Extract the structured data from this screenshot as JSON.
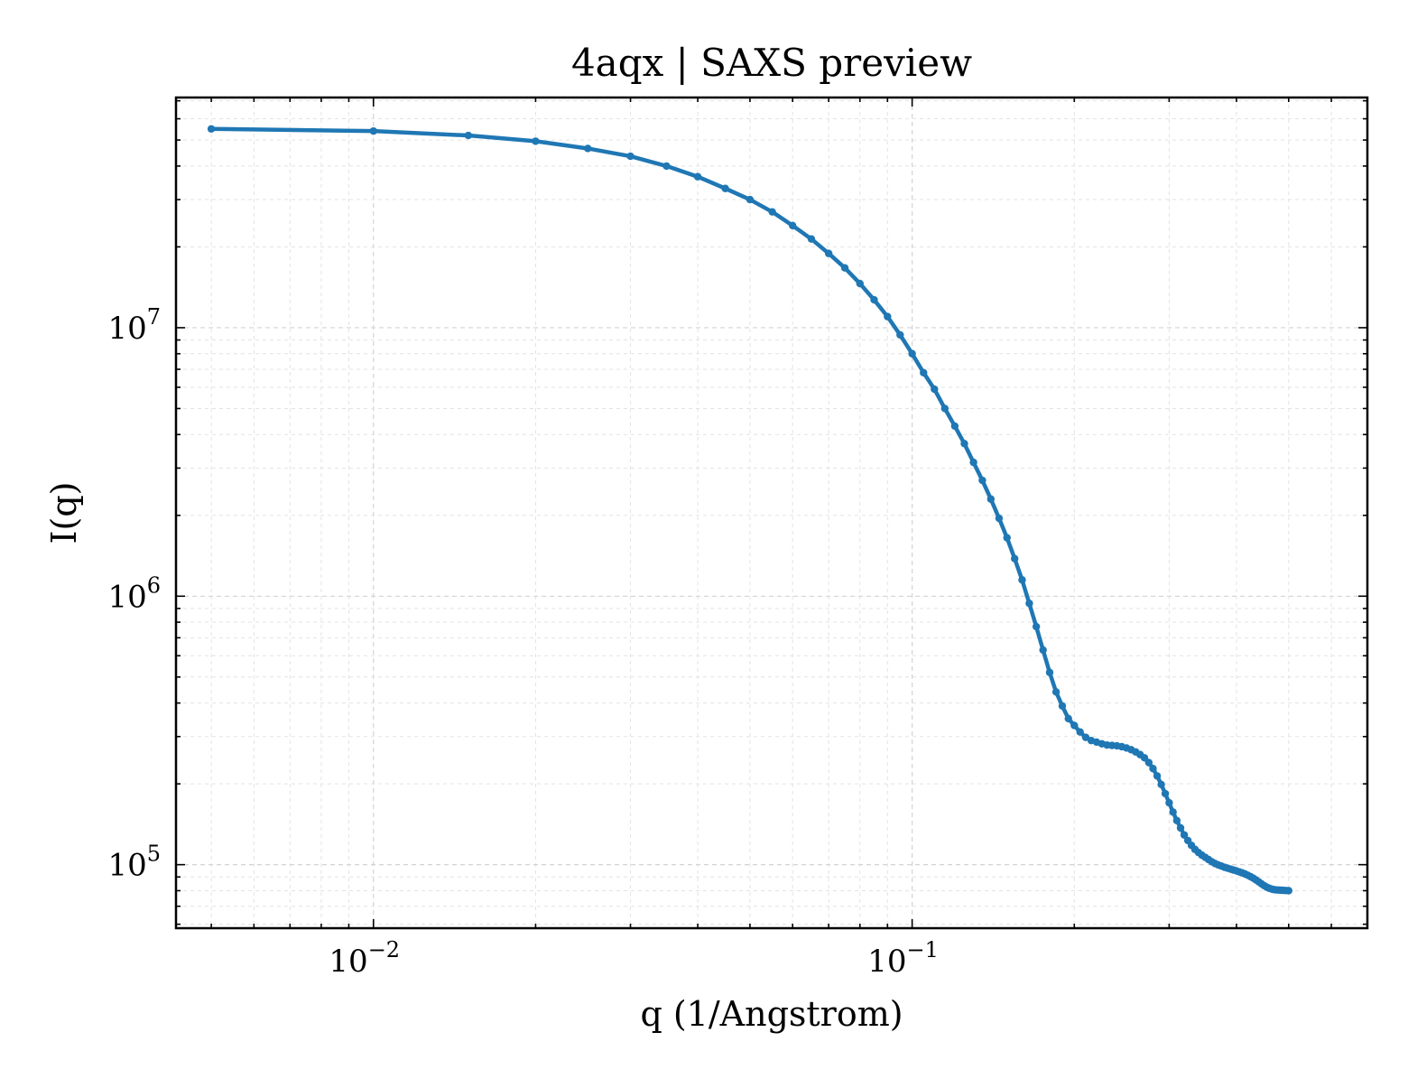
{
  "chart_data": {
    "type": "line",
    "title": "4aqx | SAXS preview",
    "xlabel": "q (1/Angstrom)",
    "ylabel": "I(q)",
    "xscale": "log",
    "yscale": "log",
    "xlim": [
      0.0043,
      0.7
    ],
    "ylim": [
      58000,
      72000000
    ],
    "grid": true,
    "legend": "none",
    "x_ticks": [
      {
        "value": 0.01,
        "base": "10",
        "exp": "−2"
      },
      {
        "value": 0.1,
        "base": "10",
        "exp": "−1"
      }
    ],
    "y_ticks": [
      {
        "value": 100000,
        "base": "10",
        "exp": "5"
      },
      {
        "value": 1000000,
        "base": "10",
        "exp": "6"
      },
      {
        "value": 10000000,
        "base": "10",
        "exp": "7"
      }
    ],
    "series": [
      {
        "color": "#1f77b4",
        "x": [
          0.005,
          0.01,
          0.015,
          0.02,
          0.025,
          0.03,
          0.035,
          0.04,
          0.045,
          0.05,
          0.055,
          0.06,
          0.065,
          0.07,
          0.075,
          0.08,
          0.085,
          0.09,
          0.095,
          0.1,
          0.105,
          0.11,
          0.115,
          0.12,
          0.125,
          0.13,
          0.135,
          0.14,
          0.145,
          0.15,
          0.155,
          0.16,
          0.165,
          0.17,
          0.175,
          0.18,
          0.185,
          0.19,
          0.195,
          0.2,
          0.205,
          0.21,
          0.215,
          0.22,
          0.225,
          0.23,
          0.235,
          0.24,
          0.245,
          0.25,
          0.255,
          0.26,
          0.265,
          0.27,
          0.275,
          0.28,
          0.285,
          0.29,
          0.295,
          0.3,
          0.305,
          0.31,
          0.315,
          0.32,
          0.325,
          0.33,
          0.335,
          0.34,
          0.345,
          0.35,
          0.355,
          0.36,
          0.365,
          0.37,
          0.375,
          0.38,
          0.385,
          0.39,
          0.395,
          0.4,
          0.405,
          0.41,
          0.415,
          0.42,
          0.425,
          0.43,
          0.435,
          0.44,
          0.445,
          0.45,
          0.455,
          0.46,
          0.465,
          0.47,
          0.475,
          0.48,
          0.485,
          0.49,
          0.495,
          0.5
        ],
        "y": [
          55000000,
          54000000,
          52000000,
          49500000,
          46500000,
          43500000,
          40000000,
          36500000,
          33000000,
          30000000,
          27000000,
          24000000,
          21400000,
          18900000,
          16700000,
          14600000,
          12700000,
          11000000,
          9400000,
          8000000,
          6800000,
          5900000,
          5000000,
          4300000,
          3700000,
          3150000,
          2700000,
          2300000,
          1950000,
          1650000,
          1380000,
          1150000,
          940000,
          770000,
          630000,
          520000,
          440000,
          390000,
          350000,
          330000,
          312000,
          298000,
          290000,
          286000,
          282000,
          279000,
          278000,
          277000,
          275000,
          272000,
          268000,
          263000,
          257000,
          250000,
          240000,
          228000,
          214000,
          199000,
          184000,
          170000,
          157000,
          146000,
          137000,
          129000,
          123000,
          118000,
          114000,
          111000,
          108500,
          106500,
          104500,
          102500,
          101000,
          99800,
          98800,
          97800,
          97000,
          96300,
          95500,
          94800,
          94000,
          93200,
          92300,
          91300,
          90200,
          89000,
          87700,
          86300,
          84900,
          83600,
          82500,
          81700,
          81100,
          80700,
          80500,
          80400,
          80300,
          80200,
          80100,
          80000
        ]
      }
    ]
  }
}
